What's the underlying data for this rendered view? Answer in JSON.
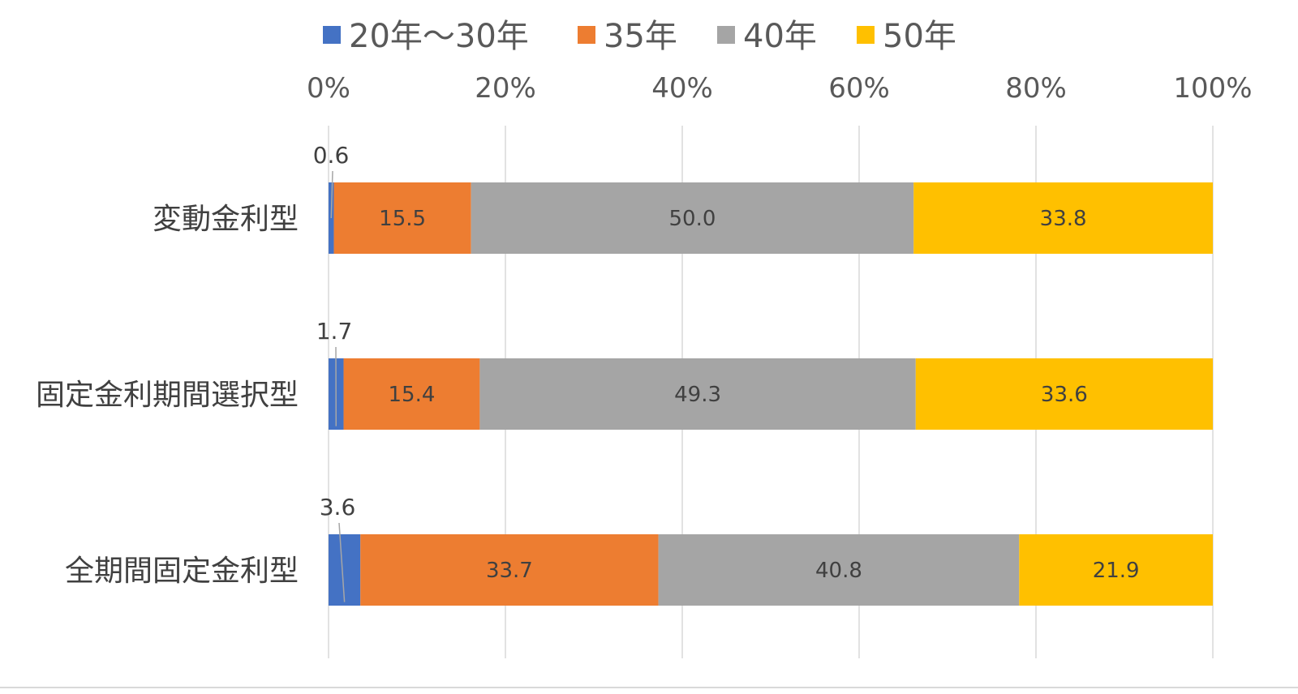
{
  "chart_data": {
    "type": "bar",
    "orientation": "horizontal",
    "stacked": true,
    "percent_stacked": true,
    "categories": [
      "変動金利型",
      "固定金利期間選択型",
      "全期間固定金利型"
    ],
    "series": [
      {
        "name": "20年～30年",
        "color": "#4472C4",
        "values": [
          0.6,
          1.7,
          3.6
        ]
      },
      {
        "name": "35年",
        "color": "#ED7D31",
        "values": [
          15.5,
          15.4,
          33.7
        ]
      },
      {
        "name": "40年",
        "color": "#A5A5A5",
        "values": [
          50.0,
          49.3,
          40.8
        ]
      },
      {
        "name": "50年",
        "color": "#FFC000",
        "values": [
          33.8,
          33.6,
          21.9
        ]
      }
    ],
    "x_ticks": [
      "0%",
      "20%",
      "40%",
      "60%",
      "80%",
      "100%"
    ],
    "xlim": [
      0,
      100
    ],
    "axis_position": "top",
    "legend_position": "top",
    "grid": true
  }
}
